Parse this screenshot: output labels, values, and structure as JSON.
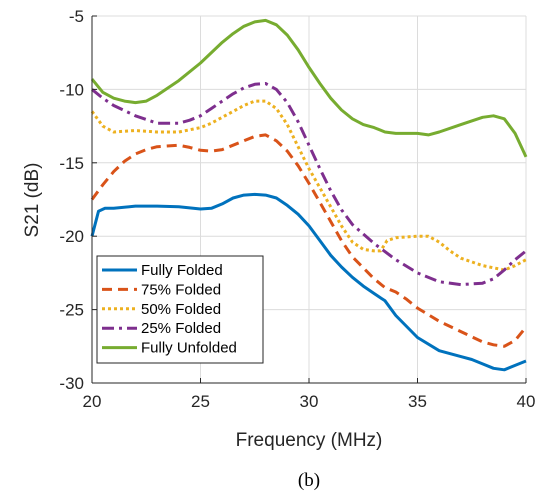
{
  "chart_data": {
    "type": "line",
    "title": "",
    "xlabel": "Frequency (MHz)",
    "ylabel": "S21 (dB)",
    "xlim": [
      20,
      40
    ],
    "ylim": [
      -30,
      -5
    ],
    "xticks": [
      20,
      25,
      30,
      35,
      40
    ],
    "yticks": [
      -5,
      -10,
      -15,
      -20,
      -25,
      -30
    ],
    "grid": true,
    "legend_position": "bottom-left",
    "caption": "(b)",
    "series": [
      {
        "name": "Fully Folded",
        "color": "#0072BD",
        "dash": "solid",
        "x": [
          20,
          20.3,
          20.6,
          21,
          22,
          23,
          24,
          25,
          25.5,
          26,
          26.5,
          27,
          27.5,
          28,
          28.5,
          29,
          29.5,
          30,
          30.5,
          31,
          31.5,
          32,
          32.5,
          33,
          33.5,
          34,
          35,
          36,
          37,
          37.5,
          38,
          38.5,
          39,
          39.5,
          40
        ],
        "y": [
          -20,
          -18.3,
          -18.1,
          -18.1,
          -17.95,
          -17.95,
          -18.0,
          -18.15,
          -18.1,
          -17.8,
          -17.4,
          -17.2,
          -17.15,
          -17.2,
          -17.4,
          -17.9,
          -18.5,
          -19.3,
          -20.3,
          -21.3,
          -22.1,
          -22.8,
          -23.4,
          -23.9,
          -24.4,
          -25.4,
          -26.9,
          -27.8,
          -28.2,
          -28.4,
          -28.7,
          -29.0,
          -29.1,
          -28.8,
          -28.5
        ]
      },
      {
        "name": "75% Folded",
        "color": "#D95319",
        "dash": "dashed",
        "x": [
          20,
          20.5,
          21,
          21.5,
          22,
          22.5,
          23,
          24,
          24.5,
          25,
          25.5,
          26,
          26.5,
          27,
          27.5,
          28,
          28.5,
          29,
          29.5,
          30,
          30.5,
          31,
          31.5,
          32,
          33,
          33.5,
          34,
          34.5,
          35,
          36,
          37,
          38,
          38.5,
          39,
          39.5,
          40
        ],
        "y": [
          -17.5,
          -16.5,
          -15.6,
          -14.9,
          -14.4,
          -14.1,
          -13.9,
          -13.8,
          -13.95,
          -14.15,
          -14.2,
          -14.1,
          -13.8,
          -13.5,
          -13.2,
          -13.1,
          -13.5,
          -14.2,
          -15.2,
          -16.4,
          -17.7,
          -19.0,
          -20.3,
          -21.4,
          -22.9,
          -23.5,
          -23.8,
          -24.3,
          -24.9,
          -25.8,
          -26.5,
          -27.2,
          -27.4,
          -27.5,
          -27.1,
          -26.2
        ]
      },
      {
        "name": "50% Folded",
        "color": "#EDB120",
        "dash": "dotted",
        "x": [
          20,
          20.5,
          21,
          22,
          23,
          24,
          25,
          25.5,
          26,
          26.5,
          27,
          27.5,
          28,
          28.5,
          29,
          29.5,
          30,
          30.5,
          31,
          31.5,
          32,
          32.5,
          33,
          33.3,
          33.6,
          34,
          35,
          35.5,
          36,
          36.5,
          37,
          38,
          39,
          39.5,
          40
        ],
        "y": [
          -11.5,
          -12.5,
          -12.9,
          -12.8,
          -12.9,
          -12.9,
          -12.6,
          -12.3,
          -11.9,
          -11.5,
          -11.1,
          -10.8,
          -10.8,
          -11.3,
          -12.4,
          -13.9,
          -15.4,
          -16.7,
          -18.0,
          -19.3,
          -20.4,
          -20.9,
          -21.0,
          -21.0,
          -20.3,
          -20.1,
          -20.0,
          -20.0,
          -20.4,
          -21.0,
          -21.5,
          -22.0,
          -22.3,
          -22.0,
          -21.6
        ]
      },
      {
        "name": "25% Folded",
        "color": "#7E2F8E",
        "dash": "dashdot",
        "x": [
          20,
          20.5,
          21,
          22,
          23,
          24,
          24.5,
          25,
          25.5,
          26,
          26.5,
          27,
          27.5,
          28,
          28.5,
          29,
          29.5,
          30,
          30.5,
          31,
          31.5,
          32,
          33,
          34,
          35,
          36,
          37,
          38,
          38.5,
          39,
          39.5,
          40
        ],
        "y": [
          -10,
          -10.6,
          -11.1,
          -11.8,
          -12.3,
          -12.3,
          -12.1,
          -11.8,
          -11.3,
          -10.8,
          -10.3,
          -9.9,
          -9.65,
          -9.6,
          -10.0,
          -10.9,
          -12.2,
          -13.8,
          -15.4,
          -16.9,
          -18.2,
          -19.2,
          -20.5,
          -21.6,
          -22.5,
          -23.1,
          -23.3,
          -23.2,
          -22.9,
          -22.3,
          -21.6,
          -21.0
        ]
      },
      {
        "name": "Fully Unfolded",
        "color": "#77AC30",
        "dash": "solid",
        "x": [
          20,
          20.5,
          21,
          21.5,
          22,
          22.5,
          23,
          24,
          25,
          26,
          26.5,
          27,
          27.5,
          28,
          28.5,
          29,
          29.5,
          30,
          30.5,
          31,
          31.5,
          32,
          32.5,
          33,
          33.5,
          34,
          35,
          35.5,
          36,
          37,
          38,
          38.5,
          39,
          39.5,
          40
        ],
        "y": [
          -9.3,
          -10.2,
          -10.6,
          -10.8,
          -10.9,
          -10.8,
          -10.4,
          -9.4,
          -8.2,
          -6.8,
          -6.2,
          -5.7,
          -5.4,
          -5.3,
          -5.6,
          -6.3,
          -7.3,
          -8.5,
          -9.6,
          -10.6,
          -11.4,
          -12.0,
          -12.4,
          -12.6,
          -12.9,
          -13.0,
          -13.0,
          -13.1,
          -12.9,
          -12.4,
          -11.9,
          -11.8,
          -12.0,
          -13.0,
          -14.6
        ]
      }
    ]
  }
}
